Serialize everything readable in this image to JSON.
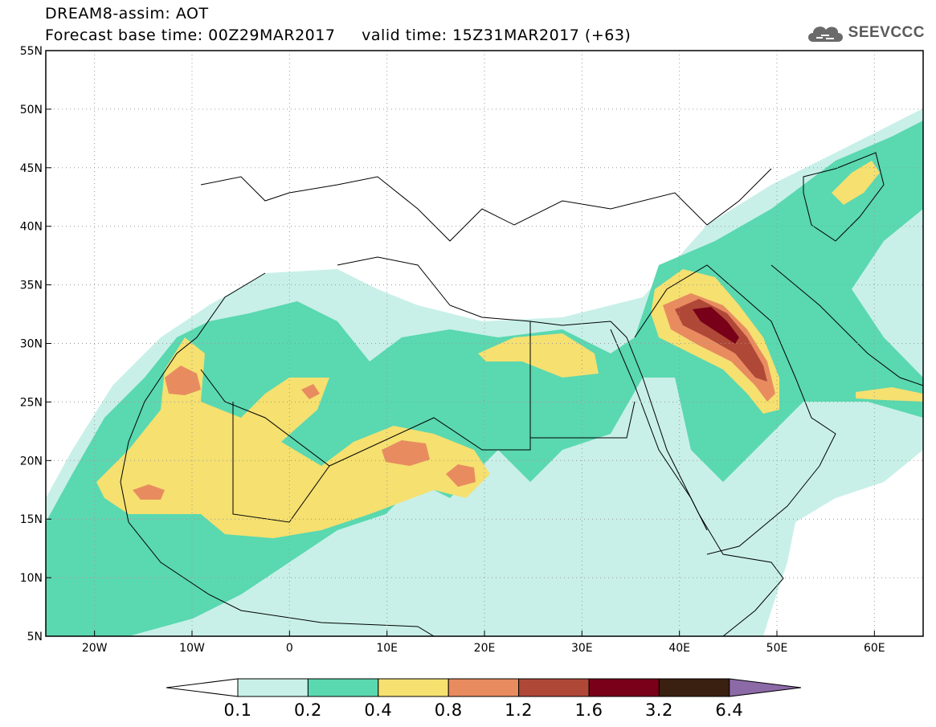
{
  "header": {
    "title": "DREAM8-assim: AOT",
    "base_time_label": "Forecast base time: 00Z29MAR2017",
    "valid_time_label": "valid time: 15Z31MAR2017 (+63)"
  },
  "logo": {
    "text": "SEEVCCC",
    "icon": "cloud-icon"
  },
  "map": {
    "lon_range": [
      -25,
      65
    ],
    "lat_range": [
      5,
      55
    ],
    "lat_ticks": [
      "55N",
      "50N",
      "45N",
      "40N",
      "35N",
      "30N",
      "25N",
      "20N",
      "15N",
      "10N",
      "5N"
    ],
    "lon_ticks": [
      "20W",
      "10W",
      "0",
      "10E",
      "20E",
      "30E",
      "40E",
      "50E",
      "60E"
    ],
    "gridlines": "dotted"
  },
  "legend": {
    "levels": [
      "0.1",
      "0.2",
      "0.4",
      "0.8",
      "1.2",
      "1.6",
      "3.2",
      "6.4"
    ],
    "colors": [
      "#ffffff",
      "#c8f0e8",
      "#5ad8b0",
      "#f5e070",
      "#e88c60",
      "#b04838",
      "#780018",
      "#3a2010",
      "#8c6aa8"
    ]
  }
}
